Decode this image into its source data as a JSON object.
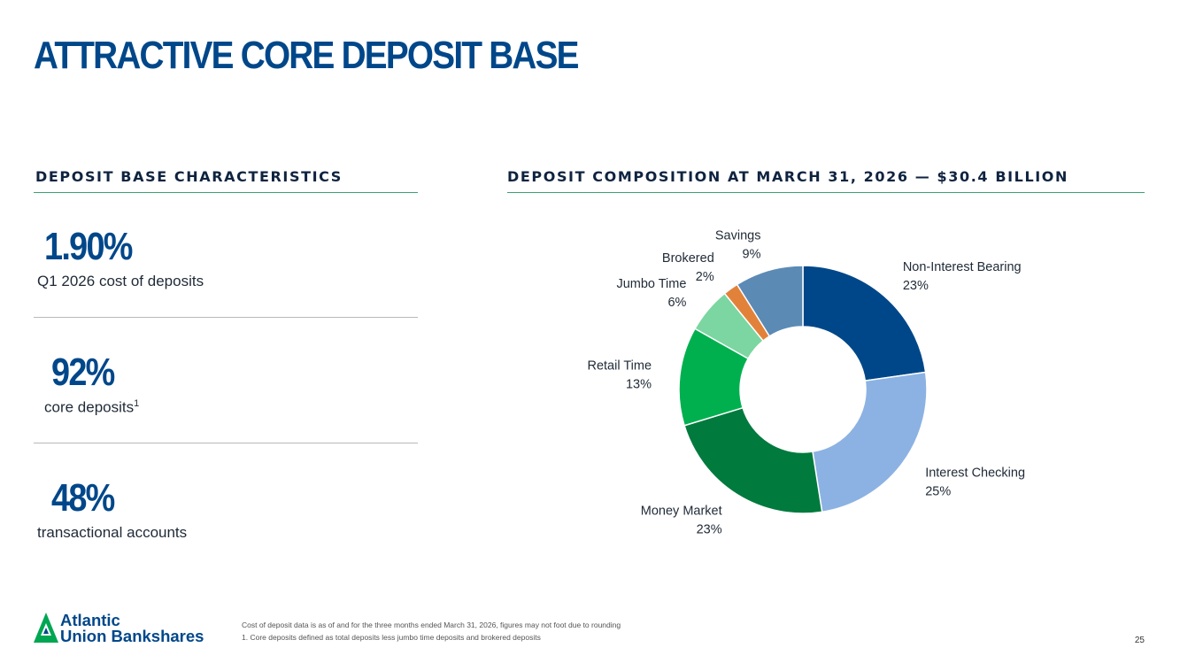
{
  "title": "ATTRACTIVE CORE DEPOSIT BASE",
  "left_section": {
    "heading": "DEPOSIT BASE CHARACTERISTICS",
    "stats": [
      {
        "value": "1.90%",
        "caption": "Q1 2026 cost of deposits"
      },
      {
        "value": "92%",
        "caption": "core deposits",
        "caption_sup": "1"
      },
      {
        "value": "48%",
        "caption": "transactional accounts"
      }
    ]
  },
  "right_section": {
    "heading": "DEPOSIT COMPOSITION AT MARCH 31, 2026 — $30.4 BILLION"
  },
  "chart_data": {
    "type": "pie",
    "donut": true,
    "title": "DEPOSIT COMPOSITION AT MARCH 31, 2026 — $30.4 BILLION",
    "total": "$30.4 BILLION",
    "categories": [
      "Non-Interest Bearing",
      "Interest Checking",
      "Money Market",
      "Retail Time",
      "Jumbo Time",
      "Brokered",
      "Savings"
    ],
    "values": [
      23,
      25,
      23,
      13,
      6,
      2,
      9
    ],
    "value_labels": [
      "23%",
      "25%",
      "23%",
      "13%",
      "6%",
      "2%",
      "9%"
    ],
    "colors": [
      "#00478a",
      "#8cb2e3",
      "#007a3d",
      "#00b04f",
      "#7bd6a1",
      "#e2823a",
      "#5b8ab5"
    ],
    "legend": "none"
  },
  "logo": {
    "line1": "Atlantic",
    "line2": "Union Bankshares",
    "icon": "triangle-logo-icon"
  },
  "footnotes": [
    "Cost of deposit data is as of and for the three months ended March 31, 2026, figures may not foot due to rounding",
    "1. Core deposits defined as total deposits less jumbo time deposits and brokered deposits"
  ],
  "page_number": "25"
}
